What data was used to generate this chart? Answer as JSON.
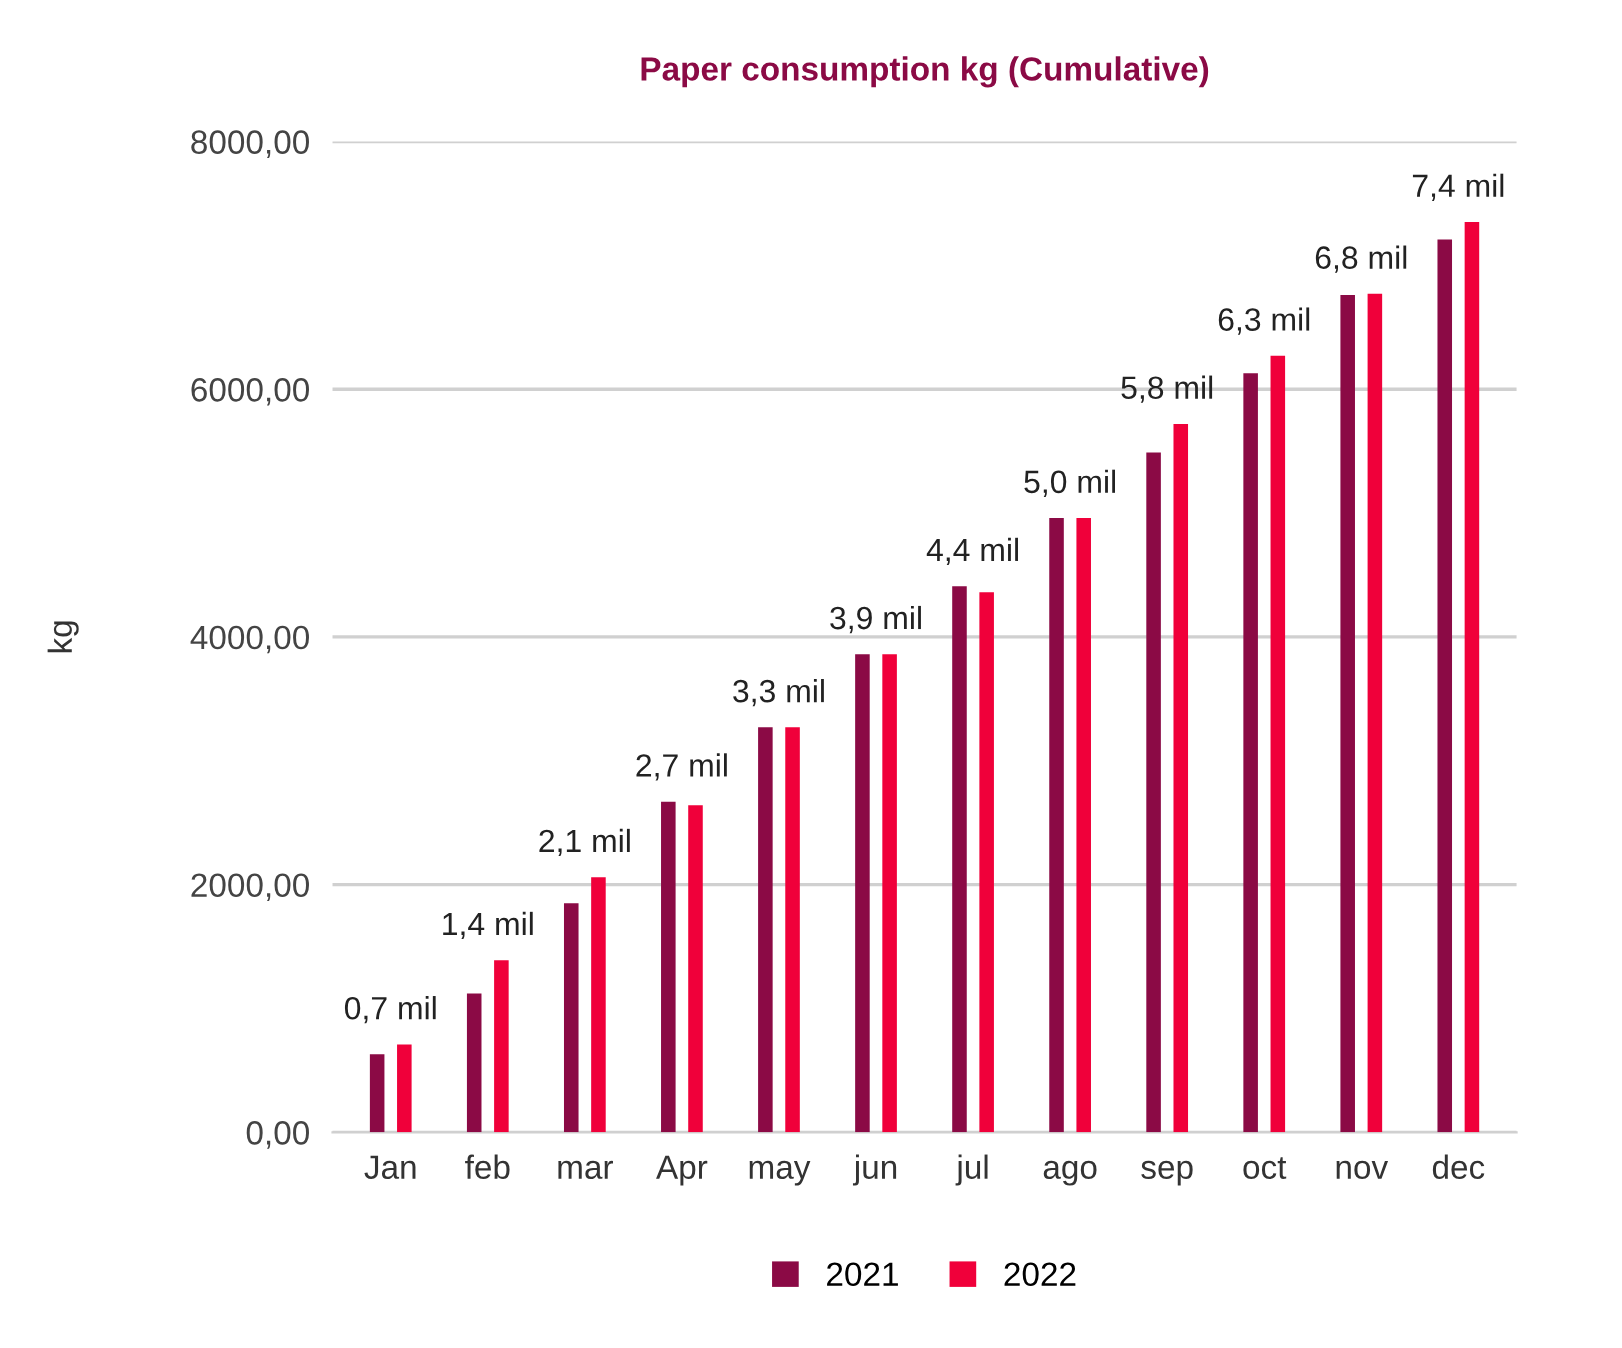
{
  "chart_data": {
    "type": "bar",
    "title": "Paper consumption kg (Cumulative)",
    "ylabel": "kg",
    "categories": [
      "Jan",
      "feb",
      "mar",
      "Apr",
      "may",
      "jun",
      "jul",
      "ago",
      "sep",
      "oct",
      "nov",
      "dec"
    ],
    "series": [
      {
        "name": "2021",
        "color": "#8b0a45",
        "values": [
          630,
          1120,
          1850,
          2670,
          3270,
          3860,
          4410,
          4960,
          5490,
          6130,
          6760,
          7210
        ]
      },
      {
        "name": "2022",
        "color": "#f0003a",
        "values": [
          710,
          1390,
          2060,
          2640,
          3270,
          3860,
          4360,
          4960,
          5720,
          6270,
          6770,
          7350
        ]
      }
    ],
    "annotations": [
      {
        "text": "0,7 mil",
        "x": "Jan",
        "y": 710
      },
      {
        "text": "1,4 mil",
        "x": "feb",
        "y": 1390
      },
      {
        "text": "2,1 mil",
        "x": "mar",
        "y": 2060
      },
      {
        "text": "2,7 mil",
        "x": "Apr",
        "y": 2670
      },
      {
        "text": "3,3 mil",
        "x": "may",
        "y": 3270
      },
      {
        "text": "3,9 mil",
        "x": "jun",
        "y": 3860
      },
      {
        "text": "4,4 mil",
        "x": "jul",
        "y": 4410
      },
      {
        "text": "5,0 mil",
        "x": "ago",
        "y": 4960
      },
      {
        "text": "5,8 mil",
        "x": "sep",
        "y": 5720
      },
      {
        "text": "6,3 mil",
        "x": "oct",
        "y": 6270
      },
      {
        "text": "6,8 mil",
        "x": "nov",
        "y": 6770
      },
      {
        "text": "7,4 mil",
        "x": "dec",
        "y": 7350
      }
    ],
    "ylim": [
      0,
      8000
    ],
    "yticks": [
      {
        "value": 0,
        "label": "0,00"
      },
      {
        "value": 2000,
        "label": "2000,00"
      },
      {
        "value": 4000,
        "label": "4000,00"
      },
      {
        "value": 6000,
        "label": "6000,00"
      },
      {
        "value": 8000,
        "label": "8000,00"
      }
    ],
    "grid": "y",
    "legend": "bottom"
  }
}
